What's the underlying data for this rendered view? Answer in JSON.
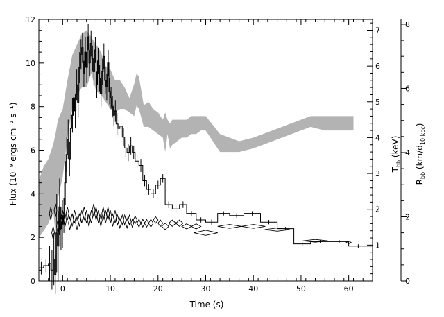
{
  "chart_data": {
    "type": "line",
    "xlabel": "Time (s)",
    "ylabel_left": "Flux (10⁻⁹ ergs cm⁻² s⁻¹)",
    "ylabel_right_inner": "T_bb (keV)",
    "ylabel_right_outer": "R_bb (km/d_10 kpc)",
    "ylabel_right_inner_parts": {
      "main": "T",
      "sub": "bb",
      "rest": " (keV)"
    },
    "ylabel_right_outer_parts": {
      "main": "R",
      "sub": "bb",
      "rest1": " (km/d",
      "sub2": "10 kpc",
      "rest2": ")"
    },
    "xlim": [
      -5,
      65
    ],
    "ylim_flux": [
      0,
      12
    ],
    "ylim_temperature": [
      0,
      7.3
    ],
    "ylim_radius": [
      0,
      8.15
    ],
    "x_ticks": [
      0,
      10,
      20,
      30,
      40,
      50,
      60
    ],
    "flux_ticks": [
      0,
      2,
      4,
      6,
      8,
      10,
      12
    ],
    "temperature_ticks": [
      1,
      2,
      3,
      4,
      5,
      6,
      7
    ],
    "radius_ticks": [
      0,
      2,
      4,
      6,
      8
    ],
    "tick_labels": {
      "x": [
        "0",
        "10",
        "20",
        "30",
        "40",
        "50",
        "60"
      ],
      "flux": [
        "0",
        "2",
        "4",
        "6",
        "8",
        "10",
        "12"
      ],
      "temperature": [
        "1",
        "2",
        "3",
        "4",
        "5",
        "6",
        "7"
      ],
      "radius": [
        "0",
        "2",
        "4",
        "6",
        "8"
      ]
    },
    "series": [
      {
        "style": "black histogram with error bars",
        "axis": "flux",
        "x": [
          -5,
          -4,
          -3,
          -2.5,
          -2,
          -1.7,
          -1.4,
          -1.1,
          -0.8,
          -0.5,
          -0.2,
          0.1,
          0.4,
          0.7,
          1.0,
          1.3,
          1.6,
          1.9,
          2.2,
          2.5,
          2.8,
          3.1,
          3.4,
          3.7,
          4.0,
          4.3,
          4.6,
          4.9,
          5.2,
          5.5,
          5.8,
          6.1,
          6.4,
          6.7,
          7.0,
          7.3,
          7.6,
          7.9,
          8.2,
          8.5,
          8.8,
          9.1,
          9.4,
          9.7,
          10.0,
          10.3,
          10.6,
          10.9,
          11.2,
          11.6,
          12.0,
          12.5,
          13.0,
          13.5,
          14.0,
          14.6,
          15.2,
          16.0,
          16.8,
          17.6,
          18.5,
          19.5,
          20.5,
          21.5,
          23.0,
          24.5,
          26.0,
          28.0,
          30.0,
          32.5,
          35.0,
          38.0,
          41.5,
          45.0,
          48.5,
          52.0,
          56.0,
          60.0,
          64.0
        ],
        "values": [
          0.6,
          0.7,
          0.8,
          0.5,
          1.0,
          0.3,
          2.2,
          1.6,
          3.4,
          2.4,
          2.6,
          3.0,
          4.5,
          5.8,
          6.5,
          5.6,
          7.0,
          7.6,
          8.4,
          7.8,
          9.0,
          8.2,
          9.8,
          10.4,
          10.7,
          9.5,
          10.5,
          9.8,
          11.2,
          10.0,
          10.9,
          10.2,
          9.6,
          10.6,
          9.0,
          10.1,
          9.3,
          8.6,
          9.6,
          10.3,
          9.2,
          8.9,
          10.0,
          8.7,
          8.4,
          8.0,
          7.6,
          7.8,
          7.2,
          7.0,
          7.1,
          6.6,
          6.1,
          5.9,
          6.2,
          5.9,
          5.5,
          5.3,
          4.6,
          4.2,
          4.0,
          4.4,
          4.7,
          3.5,
          3.3,
          3.5,
          3.1,
          2.8,
          2.7,
          3.1,
          3.0,
          3.1,
          2.7,
          2.4,
          1.7,
          1.8,
          1.8,
          1.6,
          1.6
        ],
        "errors": [
          0.3,
          0.3,
          0.8,
          0.9,
          1.2,
          0.9,
          1.8,
          1.6,
          1.3,
          1.0,
          1.1,
          0.8,
          1.0,
          0.8,
          0.9,
          0.8,
          0.7,
          0.8,
          0.7,
          0.8,
          0.7,
          0.7,
          0.7,
          0.7,
          0.7,
          0.6,
          0.7,
          0.7,
          0.6,
          0.6,
          0.6,
          0.6,
          0.6,
          0.6,
          0.6,
          0.6,
          0.6,
          0.6,
          0.6,
          0.6,
          0.6,
          0.6,
          0.6,
          0.6,
          0.5,
          0.5,
          0.5,
          0.5,
          0.5,
          0.4,
          0.4,
          0.4,
          0.4,
          0.4,
          0.4,
          0.3,
          0.3,
          0.3,
          0.25,
          0.25,
          0.2,
          0.2,
          0.2,
          0.15,
          0.15,
          0.15,
          0.12,
          0.12,
          0.12,
          0.1,
          0.1,
          0.1,
          0.1,
          0.08,
          0.08,
          0.08,
          0.08,
          0.08,
          0.08
        ]
      },
      {
        "style": "grey band",
        "axis": "temperature",
        "x": [
          -5,
          -4,
          -3,
          -2,
          -1.5,
          -1,
          0,
          1,
          2,
          3,
          4,
          5,
          6,
          7,
          8,
          9,
          10,
          11,
          12,
          13,
          14,
          15,
          15.5,
          16,
          17,
          18,
          19,
          20,
          21,
          21.5,
          22,
          22.5,
          23,
          24,
          25,
          26,
          27,
          28,
          29,
          30,
          33,
          37,
          40,
          44,
          48,
          52,
          55,
          58,
          61
        ],
        "lower": [
          1.2,
          1.4,
          1.6,
          2.0,
          1.3,
          2.3,
          2.9,
          4.0,
          4.8,
          5.2,
          5.4,
          5.4,
          5.8,
          5.3,
          5.2,
          5.0,
          4.8,
          4.7,
          4.8,
          4.8,
          4.7,
          4.6,
          4.9,
          4.8,
          4.3,
          4.3,
          4.2,
          4.1,
          4.0,
          3.6,
          4.1,
          3.7,
          3.8,
          3.9,
          4.0,
          4.0,
          4.1,
          4.1,
          4.2,
          4.2,
          3.6,
          3.6,
          3.7,
          3.9,
          4.1,
          4.3,
          4.2,
          4.2,
          4.2
        ],
        "upper": [
          2.8,
          3.2,
          3.4,
          3.8,
          4.1,
          4.5,
          4.8,
          5.6,
          6.3,
          6.6,
          6.9,
          7.0,
          6.8,
          6.6,
          6.4,
          6.0,
          5.9,
          5.6,
          5.6,
          5.4,
          5.1,
          5.5,
          5.8,
          5.7,
          4.9,
          5.0,
          4.8,
          4.7,
          4.5,
          4.7,
          4.5,
          4.4,
          4.5,
          4.5,
          4.5,
          4.5,
          4.6,
          4.6,
          4.6,
          4.6,
          4.1,
          3.9,
          4.0,
          4.2,
          4.4,
          4.6,
          4.6,
          4.6,
          4.6
        ]
      },
      {
        "style": "open diamonds",
        "axis": "radius",
        "x": [
          -2.5,
          -2,
          -1.5,
          -1,
          -0.5,
          0,
          0.5,
          1,
          1.5,
          2,
          2.5,
          3,
          3.5,
          4,
          4.5,
          5,
          5.5,
          6,
          6.5,
          7,
          7.5,
          8,
          8.5,
          9,
          9.5,
          10,
          10.5,
          11,
          11.5,
          12,
          12.5,
          13,
          13.5,
          14,
          14.6,
          15.2,
          16,
          16.8,
          17.6,
          18.5,
          19.5,
          20.5,
          21.5,
          23,
          24.5,
          26,
          28,
          30,
          35,
          40,
          45,
          53,
          60
        ],
        "values": [
          2.1,
          1.5,
          2.2,
          1.7,
          1.8,
          2.0,
          1.9,
          2.1,
          1.8,
          1.9,
          2.0,
          1.8,
          1.9,
          2.0,
          2.1,
          2.0,
          1.9,
          2.0,
          2.2,
          2.1,
          2.0,
          1.9,
          2.1,
          2.0,
          2.1,
          2.0,
          1.9,
          2.0,
          1.9,
          1.8,
          1.9,
          1.9,
          1.8,
          1.9,
          1.8,
          1.9,
          1.8,
          1.8,
          1.8,
          1.8,
          1.9,
          1.8,
          1.7,
          1.8,
          1.8,
          1.7,
          1.7,
          1.5,
          1.7,
          1.7,
          1.6,
          1.25,
          1.2
        ],
        "errors": [
          0.2,
          0.2,
          0.2,
          0.2,
          0.2,
          0.2,
          0.2,
          0.2,
          0.2,
          0.2,
          0.2,
          0.2,
          0.2,
          0.2,
          0.2,
          0.2,
          0.2,
          0.2,
          0.2,
          0.2,
          0.2,
          0.2,
          0.2,
          0.2,
          0.2,
          0.2,
          0.2,
          0.2,
          0.15,
          0.15,
          0.15,
          0.15,
          0.15,
          0.15,
          0.12,
          0.12,
          0.12,
          0.12,
          0.12,
          0.12,
          0.1,
          0.1,
          0.1,
          0.1,
          0.1,
          0.08,
          0.08,
          0.08,
          0.06,
          0.06,
          0.05,
          0.04,
          0.04
        ]
      }
    ],
    "colors": {
      "histogram": "#000000",
      "band": "#b3b3b3",
      "diamonds": "#000000",
      "axes": "#000000"
    },
    "grid": false,
    "legend": "none"
  }
}
